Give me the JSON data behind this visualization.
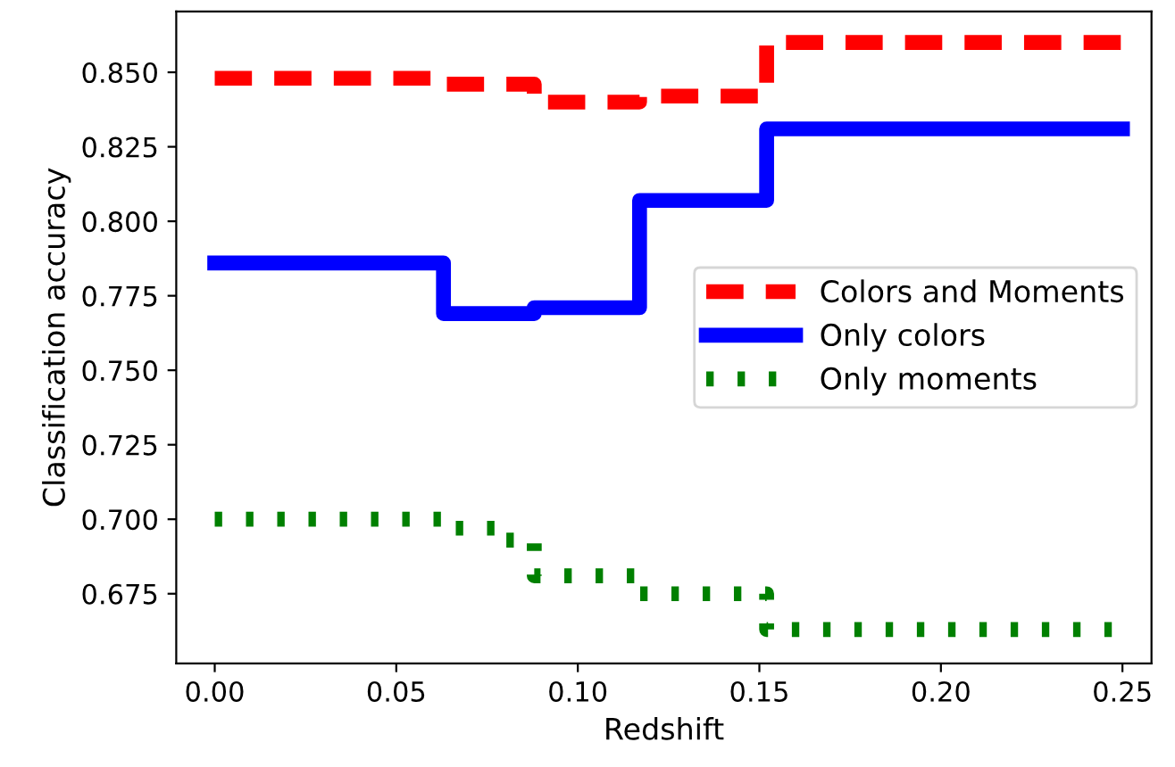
{
  "chart_data": {
    "type": "step",
    "xlabel": "Redshift",
    "ylabel": "Classification accuracy",
    "xlim": [
      -0.0106,
      0.258
    ],
    "ylim": [
      0.6516,
      0.8704
    ],
    "xticks": [
      {
        "value": 0,
        "label": "0.00"
      },
      0.05,
      {
        "value": 0.1,
        "label": "0.10"
      },
      0.15,
      {
        "value": 0.2,
        "label": "0.20"
      },
      0.25
    ],
    "yticks": [
      0.675,
      {
        "value": 0.7,
        "label": "0.700"
      },
      0.725,
      {
        "value": 0.75,
        "label": "0.750"
      },
      0.775,
      {
        "value": 0.8,
        "label": "0.800"
      },
      0.825,
      {
        "value": 0.85,
        "label": "0.850"
      }
    ],
    "grid": false,
    "legend": "right",
    "series": [
      {
        "name": "Colors and Moments",
        "color": "#ff0000",
        "line_style": "dashed",
        "x": [
          0,
          0.063,
          0.088,
          0.117,
          0.152,
          0.25
        ],
        "values": [
          0.848,
          0.846,
          0.84,
          0.842,
          0.86,
          0.86
        ]
      },
      {
        "name": "Only colors",
        "color": "#0000ff",
        "line_style": "solid",
        "x": [
          0,
          0.063,
          0.088,
          0.117,
          0.152,
          0.25
        ],
        "values": [
          0.786,
          0.769,
          0.771,
          0.807,
          0.831,
          0.831
        ]
      },
      {
        "name": "Only moments",
        "color": "#008000",
        "line_style": "dotted",
        "x": [
          0,
          0.063,
          0.078,
          0.088,
          0.117,
          0.152,
          0.25
        ],
        "values": [
          0.7,
          0.697,
          0.693,
          0.681,
          0.675,
          0.663,
          0.663
        ]
      }
    ]
  }
}
